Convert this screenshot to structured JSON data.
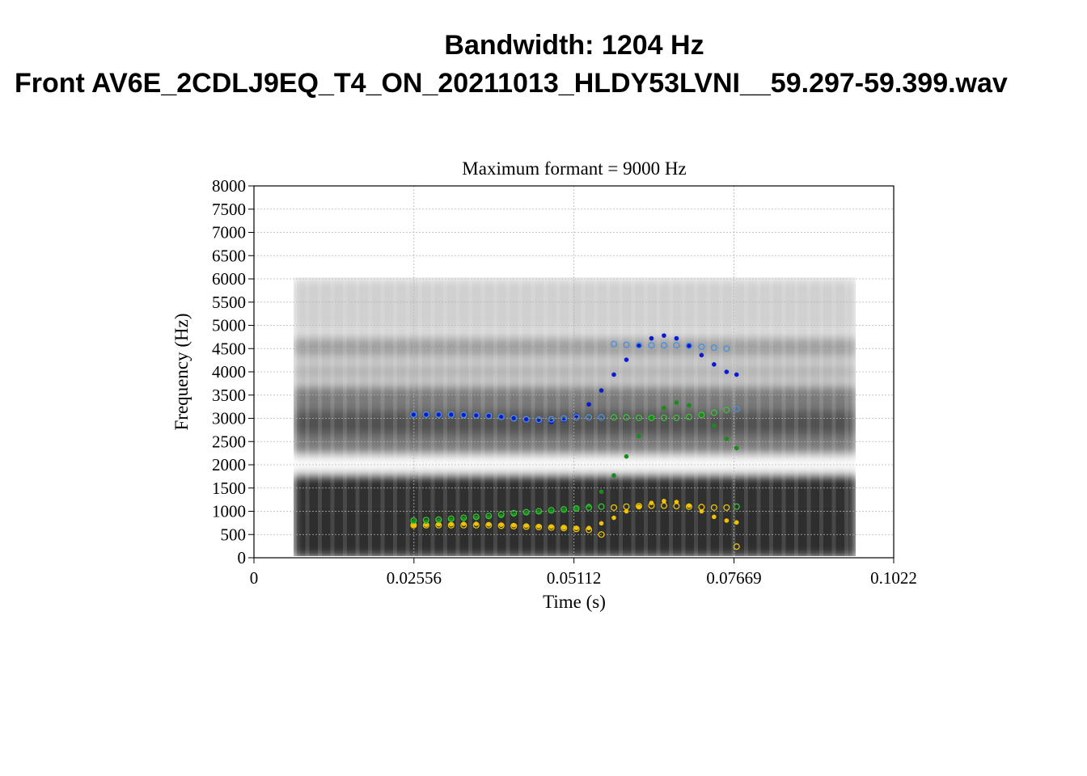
{
  "header": {
    "line1": "Bandwidth: 1204 Hz",
    "line2": "Front AV6E_2CDLJ9EQ_T4_ON_20211013_HLDY53LVNI__59.297-59.399.wav"
  },
  "chart_data": {
    "type": "scatter",
    "title": "Maximum formant  =  9000 Hz",
    "xlabel": "Time (s)",
    "ylabel": "Frequency (Hz)",
    "xlim": [
      0,
      0.1022
    ],
    "ylim": [
      0,
      8000
    ],
    "xticks": [
      "0",
      "0.02556",
      "0.05112",
      "0.07669",
      "0.1022"
    ],
    "yticks": [
      "0",
      "500",
      "1000",
      "1500",
      "2000",
      "2500",
      "3000",
      "3500",
      "4000",
      "4500",
      "5000",
      "5500",
      "6000",
      "6500",
      "7000",
      "7500",
      "8000"
    ],
    "grid": true,
    "background": "grayscale spectrogram, 0.0062-0.0962 s, 0-6000 Hz",
    "colors": {
      "F1_filled": "#f2c200",
      "F1_open": "#e8c400",
      "F2_filled": "#1c8a1c",
      "F2_open": "#39c239",
      "F3_filled": "#0a1ad0",
      "F3_open": "#4a90e0"
    },
    "series": [
      {
        "id": "F1_filled",
        "marker": "filled",
        "x": [
          0.0255,
          0.0275,
          0.0295,
          0.0315,
          0.0335,
          0.0355,
          0.0375,
          0.0395,
          0.0415,
          0.0435,
          0.0455,
          0.0475,
          0.0495,
          0.0515,
          0.0535,
          0.0555,
          0.0575,
          0.0595,
          0.0615,
          0.0635,
          0.0655,
          0.0675,
          0.0695,
          0.0715,
          0.0735,
          0.0755,
          0.0771
        ],
        "y": [
          700,
          710,
          720,
          720,
          730,
          730,
          720,
          710,
          700,
          690,
          680,
          670,
          650,
          640,
          640,
          740,
          860,
          1000,
          1100,
          1180,
          1220,
          1200,
          1120,
          1000,
          880,
          800,
          760
        ]
      },
      {
        "id": "F1_open",
        "marker": "open",
        "x": [
          0.0255,
          0.0275,
          0.0295,
          0.0315,
          0.0335,
          0.0355,
          0.0375,
          0.0395,
          0.0415,
          0.0435,
          0.0455,
          0.0475,
          0.0495,
          0.0515,
          0.0535,
          0.0555,
          0.0575,
          0.0595,
          0.0615,
          0.0635,
          0.0655,
          0.0675,
          0.0695,
          0.0715,
          0.0735,
          0.0755,
          0.0771
        ],
        "y": [
          700,
          700,
          700,
          700,
          700,
          700,
          700,
          690,
          680,
          670,
          660,
          650,
          640,
          620,
          600,
          500,
          1080,
          1100,
          1110,
          1120,
          1120,
          1110,
          1100,
          1090,
          1080,
          1080,
          240
        ]
      },
      {
        "id": "F2_filled",
        "marker": "filled",
        "x": [
          0.0255,
          0.0275,
          0.0295,
          0.0315,
          0.0335,
          0.0355,
          0.0375,
          0.0395,
          0.0415,
          0.0435,
          0.0455,
          0.0475,
          0.0495,
          0.0515,
          0.0535,
          0.0555,
          0.0575,
          0.0595,
          0.0615,
          0.0635,
          0.0655,
          0.0675,
          0.0695,
          0.0715,
          0.0735,
          0.0755,
          0.0771
        ],
        "y": [
          780,
          780,
          800,
          820,
          840,
          860,
          880,
          900,
          930,
          960,
          980,
          1000,
          1020,
          1060,
          1120,
          1420,
          1770,
          2180,
          2620,
          3000,
          3220,
          3340,
          3280,
          3100,
          2840,
          2560,
          2360
        ]
      },
      {
        "id": "F2_open",
        "marker": "open",
        "x": [
          0.0255,
          0.0275,
          0.0295,
          0.0315,
          0.0335,
          0.0355,
          0.0375,
          0.0395,
          0.0415,
          0.0435,
          0.0455,
          0.0475,
          0.0495,
          0.0515,
          0.0535,
          0.0555,
          0.0575,
          0.0595,
          0.0615,
          0.0635,
          0.0655,
          0.0675,
          0.0695,
          0.0715,
          0.0735,
          0.0755,
          0.0771
        ],
        "y": [
          800,
          810,
          820,
          840,
          860,
          880,
          900,
          930,
          960,
          980,
          1000,
          1020,
          1040,
          1060,
          1080,
          1100,
          3020,
          3020,
          3010,
          3010,
          3010,
          3010,
          3030,
          3070,
          3120,
          3180,
          1100
        ]
      },
      {
        "id": "F3_filled",
        "marker": "filled",
        "x": [
          0.0255,
          0.0275,
          0.0295,
          0.0315,
          0.0335,
          0.0355,
          0.0375,
          0.0395,
          0.0415,
          0.0435,
          0.0455,
          0.0475,
          0.0495,
          0.0515,
          0.0535,
          0.0555,
          0.0575,
          0.0595,
          0.0615,
          0.0635,
          0.0655,
          0.0675,
          0.0695,
          0.0715,
          0.0735,
          0.0755,
          0.0771
        ],
        "y": [
          3080,
          3080,
          3080,
          3080,
          3080,
          3070,
          3060,
          3040,
          3010,
          2970,
          2940,
          2920,
          2960,
          3060,
          3300,
          3600,
          3940,
          4260,
          4560,
          4720,
          4780,
          4720,
          4560,
          4360,
          4160,
          4000,
          3940
        ]
      },
      {
        "id": "F3_open",
        "marker": "open",
        "x": [
          0.0255,
          0.0275,
          0.0295,
          0.0315,
          0.0335,
          0.0355,
          0.0375,
          0.0395,
          0.0415,
          0.0435,
          0.0455,
          0.0475,
          0.0495,
          0.0515,
          0.0535,
          0.0555,
          0.0575,
          0.0595,
          0.0615,
          0.0635,
          0.0655,
          0.0675,
          0.0695,
          0.0715,
          0.0735,
          0.0755,
          0.0771
        ],
        "y": [
          3080,
          3080,
          3080,
          3080,
          3070,
          3060,
          3050,
          3030,
          3000,
          2980,
          2970,
          2980,
          3000,
          3020,
          3020,
          3020,
          4600,
          4580,
          4570,
          4570,
          4570,
          4570,
          4560,
          4540,
          4520,
          4500,
          3200
        ]
      }
    ]
  }
}
